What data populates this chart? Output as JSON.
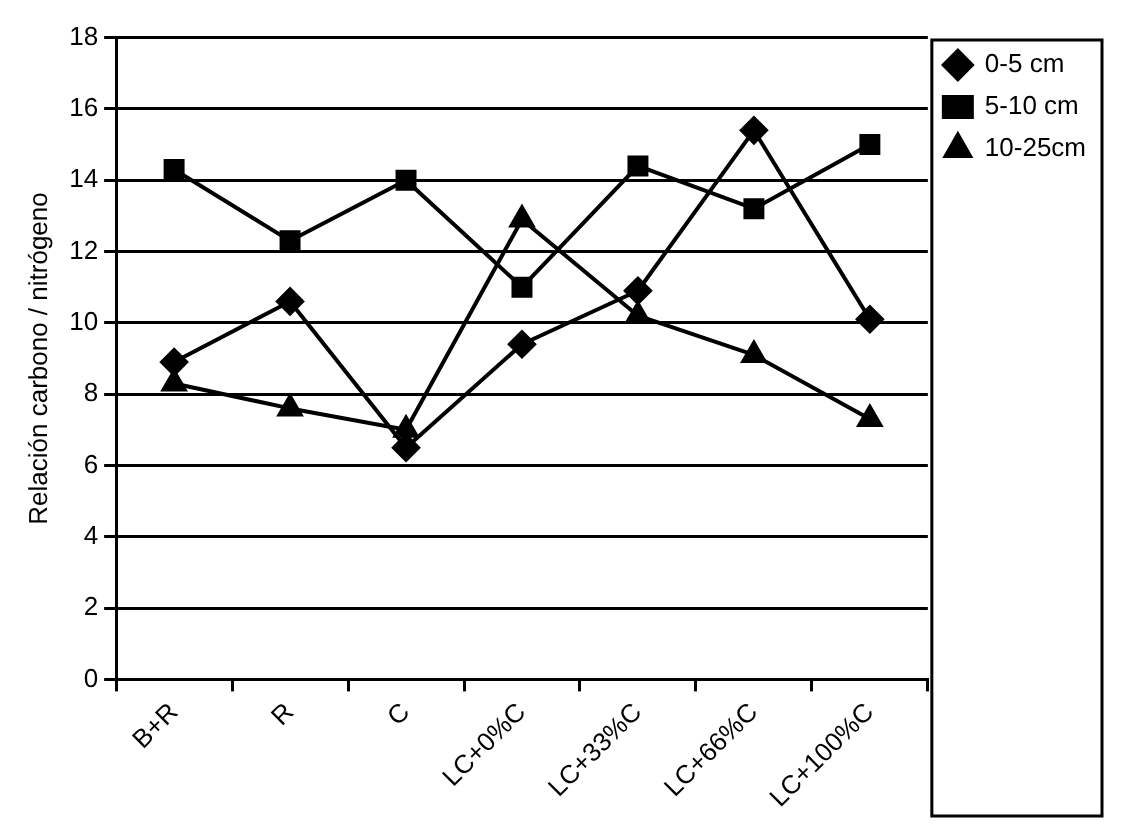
{
  "chart_data": {
    "type": "line",
    "ylabel": "Relación carbono / nitrógeno",
    "categories": [
      "B+R",
      "R",
      "C",
      "LC+0%C",
      "LC+33%C",
      "LC+66%C",
      "LC+100%C"
    ],
    "series": [
      {
        "name": "0-5 cm",
        "color": "#000000",
        "marker": "diamond",
        "values": [
          8.9,
          10.6,
          6.5,
          9.4,
          10.9,
          15.4,
          10.1
        ]
      },
      {
        "name": "5-10 cm",
        "color": "#000000",
        "marker": "square",
        "values": [
          14.3,
          12.3,
          14.0,
          11.0,
          14.4,
          13.2,
          15.0
        ]
      },
      {
        "name": "10-25cm",
        "color": "#000000",
        "marker": "triangle",
        "values": [
          8.3,
          7.6,
          7.0,
          12.9,
          10.2,
          9.1,
          7.3
        ]
      }
    ],
    "ylim": [
      0,
      18
    ],
    "yticks": [
      0,
      2,
      4,
      6,
      8,
      10,
      12,
      14,
      16,
      18
    ],
    "grid": "y",
    "legend": "top right",
    "line_style": "solid"
  }
}
